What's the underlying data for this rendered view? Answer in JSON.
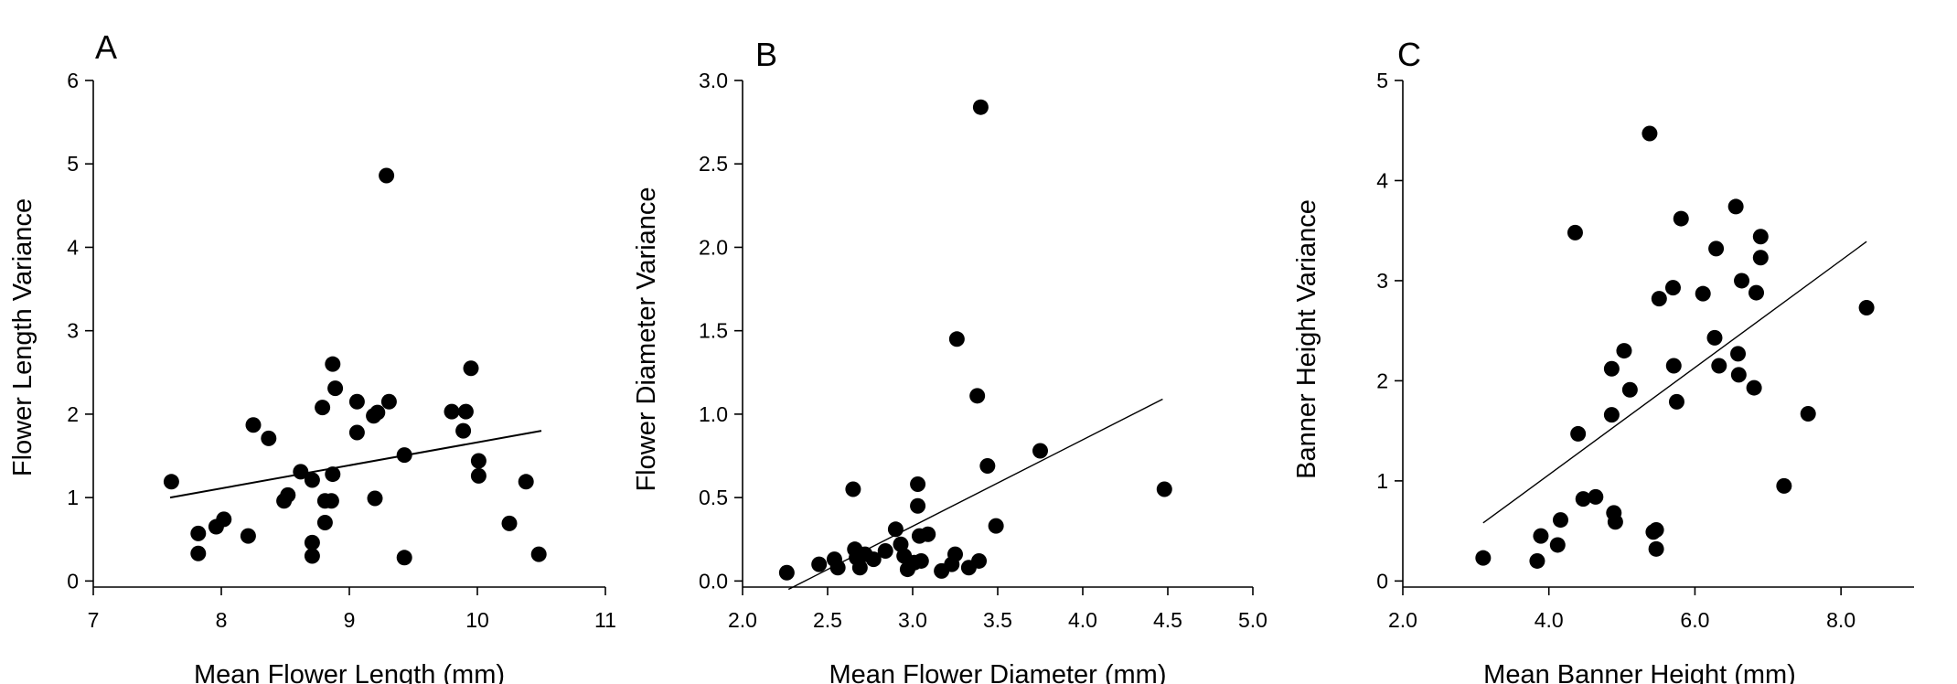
{
  "chart_data": [
    {
      "type": "scatter",
      "panel_label": "A",
      "xlabel": "Mean Flower Length (mm)",
      "ylabel": "Flower Length Variance",
      "xlim": [
        7,
        11
      ],
      "ylim": [
        0,
        6
      ],
      "xticks": [
        "7",
        "8",
        "9",
        "10",
        "11"
      ],
      "yticks": [
        "0",
        "1",
        "2",
        "3",
        "4",
        "5",
        "6"
      ],
      "trendline": {
        "x": [
          7.6,
          10.5
        ],
        "y": [
          1.0,
          1.8
        ]
      },
      "points": [
        {
          "x": 7.61,
          "y": 1.19
        },
        {
          "x": 7.82,
          "y": 0.57
        },
        {
          "x": 7.82,
          "y": 0.33
        },
        {
          "x": 7.96,
          "y": 0.65
        },
        {
          "x": 8.02,
          "y": 0.74
        },
        {
          "x": 8.21,
          "y": 0.54
        },
        {
          "x": 8.25,
          "y": 1.87
        },
        {
          "x": 8.37,
          "y": 1.71
        },
        {
          "x": 8.49,
          "y": 0.96
        },
        {
          "x": 8.52,
          "y": 1.03
        },
        {
          "x": 8.62,
          "y": 1.31
        },
        {
          "x": 8.71,
          "y": 1.21
        },
        {
          "x": 8.71,
          "y": 0.46
        },
        {
          "x": 8.71,
          "y": 0.3
        },
        {
          "x": 8.79,
          "y": 2.08
        },
        {
          "x": 8.81,
          "y": 0.96
        },
        {
          "x": 8.81,
          "y": 0.7
        },
        {
          "x": 8.86,
          "y": 0.96
        },
        {
          "x": 8.87,
          "y": 2.6
        },
        {
          "x": 8.87,
          "y": 1.28
        },
        {
          "x": 8.89,
          "y": 2.31
        },
        {
          "x": 9.06,
          "y": 2.15
        },
        {
          "x": 9.06,
          "y": 1.78
        },
        {
          "x": 9.19,
          "y": 1.98
        },
        {
          "x": 9.22,
          "y": 2.02
        },
        {
          "x": 9.2,
          "y": 0.99
        },
        {
          "x": 9.29,
          "y": 4.86
        },
        {
          "x": 9.31,
          "y": 2.15
        },
        {
          "x": 9.43,
          "y": 1.51
        },
        {
          "x": 9.43,
          "y": 0.28
        },
        {
          "x": 9.8,
          "y": 2.03
        },
        {
          "x": 9.89,
          "y": 1.8
        },
        {
          "x": 9.91,
          "y": 2.03
        },
        {
          "x": 9.95,
          "y": 2.55
        },
        {
          "x": 10.01,
          "y": 1.44
        },
        {
          "x": 10.01,
          "y": 1.26
        },
        {
          "x": 10.25,
          "y": 0.69
        },
        {
          "x": 10.38,
          "y": 1.19
        },
        {
          "x": 10.48,
          "y": 0.32
        }
      ]
    },
    {
      "type": "scatter",
      "panel_label": "B",
      "xlabel": "Mean Flower Diameter (mm)",
      "ylabel": "Flower Diameter Variance",
      "xlim": [
        2.0,
        5.0
      ],
      "ylim": [
        0.0,
        3.0
      ],
      "xticks": [
        "2.0",
        "2.5",
        "3.0",
        "3.5",
        "4.0",
        "4.5",
        "5.0"
      ],
      "yticks": [
        "0.0",
        "0.5",
        "1.0",
        "1.5",
        "2.0",
        "2.5",
        "3.0"
      ],
      "trendline": {
        "x": [
          2.27,
          4.47
        ],
        "y": [
          -0.05,
          1.09
        ]
      },
      "points": [
        {
          "x": 2.26,
          "y": 0.05
        },
        {
          "x": 2.45,
          "y": 0.1
        },
        {
          "x": 2.54,
          "y": 0.13
        },
        {
          "x": 2.56,
          "y": 0.08
        },
        {
          "x": 2.65,
          "y": 0.55
        },
        {
          "x": 2.66,
          "y": 0.19
        },
        {
          "x": 2.67,
          "y": 0.14
        },
        {
          "x": 2.69,
          "y": 0.08
        },
        {
          "x": 2.72,
          "y": 0.16
        },
        {
          "x": 2.77,
          "y": 0.13
        },
        {
          "x": 2.84,
          "y": 0.18
        },
        {
          "x": 2.9,
          "y": 0.31
        },
        {
          "x": 2.93,
          "y": 0.22
        },
        {
          "x": 2.95,
          "y": 0.15
        },
        {
          "x": 2.97,
          "y": 0.07
        },
        {
          "x": 3.01,
          "y": 0.11
        },
        {
          "x": 3.03,
          "y": 0.58
        },
        {
          "x": 3.03,
          "y": 0.45
        },
        {
          "x": 3.04,
          "y": 0.27
        },
        {
          "x": 3.05,
          "y": 0.12
        },
        {
          "x": 3.09,
          "y": 0.28
        },
        {
          "x": 3.17,
          "y": 0.06
        },
        {
          "x": 3.23,
          "y": 0.1
        },
        {
          "x": 3.25,
          "y": 0.16
        },
        {
          "x": 3.26,
          "y": 1.45
        },
        {
          "x": 3.33,
          "y": 0.08
        },
        {
          "x": 3.38,
          "y": 1.11
        },
        {
          "x": 3.39,
          "y": 0.12
        },
        {
          "x": 3.4,
          "y": 2.84
        },
        {
          "x": 3.44,
          "y": 0.69
        },
        {
          "x": 3.49,
          "y": 0.33
        },
        {
          "x": 3.75,
          "y": 0.78
        },
        {
          "x": 4.48,
          "y": 0.55
        }
      ]
    },
    {
      "type": "scatter",
      "panel_label": "C",
      "xlabel": "Mean Banner Height (mm)",
      "ylabel": "Banner Height Variance",
      "xlim": [
        2.0,
        9.0
      ],
      "ylim": [
        0,
        5
      ],
      "xticks": [
        "2.0",
        "4.0",
        "6.0",
        "8.0"
      ],
      "xtick_values": [
        2,
        4,
        6,
        8
      ],
      "yticks": [
        "0",
        "1",
        "2",
        "3",
        "4",
        "5"
      ],
      "trendline": {
        "x": [
          3.1,
          8.35
        ],
        "y": [
          0.58,
          3.39
        ]
      },
      "points": [
        {
          "x": 3.1,
          "y": 0.23
        },
        {
          "x": 3.84,
          "y": 0.2
        },
        {
          "x": 3.89,
          "y": 0.45
        },
        {
          "x": 4.12,
          "y": 0.36
        },
        {
          "x": 4.16,
          "y": 0.61
        },
        {
          "x": 4.36,
          "y": 3.48
        },
        {
          "x": 4.4,
          "y": 1.47
        },
        {
          "x": 4.47,
          "y": 0.82
        },
        {
          "x": 4.64,
          "y": 0.84
        },
        {
          "x": 4.86,
          "y": 2.12
        },
        {
          "x": 4.86,
          "y": 1.66
        },
        {
          "x": 4.89,
          "y": 0.68
        },
        {
          "x": 4.91,
          "y": 0.59
        },
        {
          "x": 5.03,
          "y": 2.3
        },
        {
          "x": 5.11,
          "y": 1.91
        },
        {
          "x": 5.38,
          "y": 4.47
        },
        {
          "x": 5.43,
          "y": 0.49
        },
        {
          "x": 5.47,
          "y": 0.51
        },
        {
          "x": 5.47,
          "y": 0.32
        },
        {
          "x": 5.51,
          "y": 2.82
        },
        {
          "x": 5.7,
          "y": 2.93
        },
        {
          "x": 5.71,
          "y": 2.15
        },
        {
          "x": 5.75,
          "y": 1.79
        },
        {
          "x": 5.81,
          "y": 3.62
        },
        {
          "x": 6.11,
          "y": 2.87
        },
        {
          "x": 6.27,
          "y": 2.43
        },
        {
          "x": 6.29,
          "y": 3.32
        },
        {
          "x": 6.33,
          "y": 2.15
        },
        {
          "x": 6.56,
          "y": 3.74
        },
        {
          "x": 6.59,
          "y": 2.27
        },
        {
          "x": 6.6,
          "y": 2.06
        },
        {
          "x": 6.64,
          "y": 3.0
        },
        {
          "x": 6.81,
          "y": 1.93
        },
        {
          "x": 6.84,
          "y": 2.88
        },
        {
          "x": 6.9,
          "y": 3.44
        },
        {
          "x": 6.9,
          "y": 3.23
        },
        {
          "x": 7.22,
          "y": 0.95
        },
        {
          "x": 7.55,
          "y": 1.67
        },
        {
          "x": 8.35,
          "y": 2.73
        }
      ]
    }
  ]
}
